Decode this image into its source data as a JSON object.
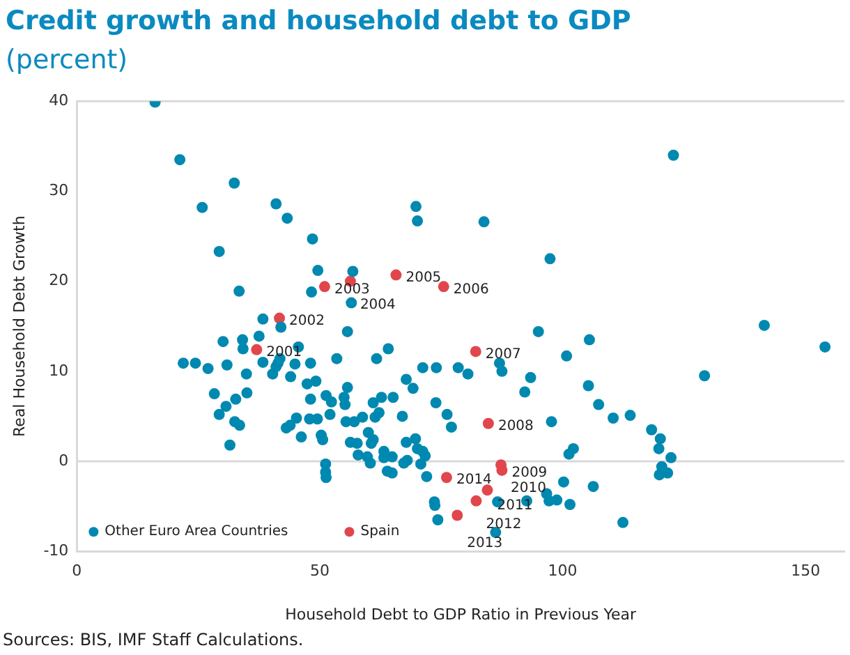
{
  "chart_data": {
    "type": "scatter",
    "title": "Credit growth and household debt to GDP",
    "subtitle": "(percent)",
    "xlabel": "Household Debt to GDP Ratio in Previous Year",
    "ylabel": "Real Household Debt Growth",
    "xlim": [
      0,
      158
    ],
    "xticks": [
      0,
      50,
      100,
      150
    ],
    "ylim": [
      -10,
      40
    ],
    "yticks": [
      -10,
      0,
      10,
      20,
      30,
      40
    ],
    "grid": false,
    "legend": "bottom left",
    "marker": "circle",
    "ref_lines": [
      {
        "axis": "y",
        "value": 0,
        "color": "#d9d9d9"
      }
    ],
    "series": [
      {
        "name": "Other Euro Area Countries",
        "color": "#0089b0",
        "x": [
          16.1,
          21.2,
          32.4,
          25.8,
          41.0,
          43.3,
          48.5,
          29.3,
          49.6,
          33.4,
          48.3,
          38.3,
          42.0,
          56.8,
          56.5,
          69.8,
          70.1,
          83.8,
          97.4,
          55.7,
          95.0,
          122.8,
          141.5,
          154.0,
          129.2,
          110.4,
          113.9,
          118.3,
          120.1,
          119.8,
          122.3,
          120.4,
          119.9,
          121.6,
          112.4,
          21.9,
          24.4,
          27.0,
          30.1,
          30.9,
          34.1,
          34.2,
          37.5,
          45.6,
          38.3,
          41.4,
          41.8,
          41.0,
          44.9,
          48.1,
          53.5,
          34.9,
          40.3,
          44.0,
          47.4,
          49.2,
          28.3,
          35.0,
          32.7,
          30.7,
          29.3,
          32.5,
          33.5,
          31.5,
          48.1,
          51.3,
          52.4,
          55.0,
          55.2,
          55.7,
          45.2,
          43.9,
          43.1,
          47.9,
          49.5,
          52.1,
          55.4,
          46.2,
          50.3,
          50.6,
          56.3,
          51.2,
          51.2,
          51.3,
          105.5,
          100.8,
          64.1,
          61.7,
          71.2,
          74.0,
          78.5,
          80.5,
          87.0,
          87.5,
          93.4,
          92.2,
          105.3,
          107.4,
          97.7,
          67.8,
          69.2,
          61.0,
          62.7,
          65.1,
          62.2,
          61.4,
          58.8,
          57.1,
          67.0,
          73.9,
          76.2,
          77.1,
          60.0,
          57.7,
          60.6,
          61.0,
          57.9,
          59.8,
          60.4,
          63.2,
          63.2,
          63.9,
          64.9,
          64.9,
          67.3,
          68.0,
          67.8,
          69.7,
          70.1,
          71.2,
          71.7,
          70.8,
          72.0,
          73.6,
          73.7,
          74.3,
          86.2,
          86.6,
          92.6,
          96.7,
          97.2,
          98.8,
          101.5,
          100.2,
          106.3,
          101.3,
          102.2
        ],
        "values": [
          39.9,
          33.5,
          30.9,
          28.2,
          28.6,
          27.0,
          24.7,
          23.3,
          21.2,
          18.9,
          18.8,
          15.8,
          14.9,
          21.1,
          17.6,
          28.3,
          26.7,
          26.6,
          22.5,
          14.4,
          14.4,
          34.0,
          15.1,
          12.7,
          9.5,
          4.8,
          5.1,
          3.5,
          2.5,
          1.4,
          0.4,
          -0.6,
          -1.5,
          -1.3,
          -6.8,
          10.9,
          10.9,
          10.3,
          13.3,
          10.7,
          13.5,
          12.5,
          13.9,
          12.7,
          11.0,
          10.9,
          11.4,
          10.5,
          10.8,
          10.9,
          11.4,
          9.7,
          9.7,
          9.4,
          8.6,
          8.9,
          7.5,
          7.6,
          6.9,
          6.1,
          5.2,
          4.4,
          4.0,
          1.8,
          6.9,
          7.3,
          6.6,
          7.1,
          6.3,
          8.2,
          4.8,
          4.0,
          3.7,
          4.7,
          4.7,
          5.2,
          4.4,
          2.7,
          2.9,
          2.4,
          2.1,
          -0.3,
          -1.2,
          -1.8,
          13.5,
          11.7,
          12.5,
          11.4,
          10.4,
          10.4,
          10.4,
          9.7,
          10.9,
          10.0,
          9.3,
          7.7,
          8.4,
          6.3,
          4.4,
          9.1,
          8.1,
          6.5,
          7.1,
          7.1,
          5.4,
          4.9,
          4.9,
          4.4,
          5.0,
          6.5,
          5.2,
          3.8,
          3.2,
          2.0,
          2.0,
          2.4,
          0.7,
          0.5,
          -0.2,
          1.1,
          0.4,
          -1.1,
          -1.3,
          0.5,
          -0.2,
          0.1,
          2.1,
          2.5,
          1.4,
          1.1,
          0.6,
          -0.3,
          -1.7,
          -4.5,
          -4.9,
          -6.5,
          -7.9,
          -4.5,
          -4.4,
          -3.6,
          -4.4,
          -4.3,
          -4.8,
          -2.3,
          -2.8,
          0.8,
          1.4
        ]
      },
      {
        "name": "Spain",
        "color": "#e0474c",
        "x": [
          37.0,
          41.7,
          51.0,
          56.3,
          65.7,
          75.5,
          82.1,
          84.7,
          87.5,
          87.3,
          84.5,
          82.2,
          78.3,
          76.1
        ],
        "values": [
          12.4,
          15.9,
          19.4,
          20.0,
          20.7,
          19.4,
          12.2,
          4.2,
          -1.0,
          -0.4,
          -3.2,
          -4.4,
          -6.0,
          -1.8
        ]
      }
    ],
    "annotations": [
      {
        "text": "2001",
        "x": 37.0,
        "y": 12.4
      },
      {
        "text": "2002",
        "x": 41.7,
        "y": 15.9
      },
      {
        "text": "2003",
        "x": 51.0,
        "y": 19.4
      },
      {
        "text": "2004",
        "x": 56.3,
        "y": 20.0
      },
      {
        "text": "2005",
        "x": 65.7,
        "y": 20.7
      },
      {
        "text": "2006",
        "x": 75.5,
        "y": 19.4
      },
      {
        "text": "2007",
        "x": 82.1,
        "y": 12.2
      },
      {
        "text": "2008",
        "x": 84.7,
        "y": 4.2
      },
      {
        "text": "2009",
        "x": 87.5,
        "y": -1.0
      },
      {
        "text": "2010",
        "x": 87.3,
        "y": -0.4
      },
      {
        "text": "2011",
        "x": 84.5,
        "y": -3.2
      },
      {
        "text": "2012",
        "x": 82.2,
        "y": -4.4
      },
      {
        "text": "2013",
        "x": 78.3,
        "y": -6.0
      },
      {
        "text": "2014",
        "x": 76.1,
        "y": -1.8
      },
      "Sources: BIS, IMF Staff Calculations."
    ]
  }
}
